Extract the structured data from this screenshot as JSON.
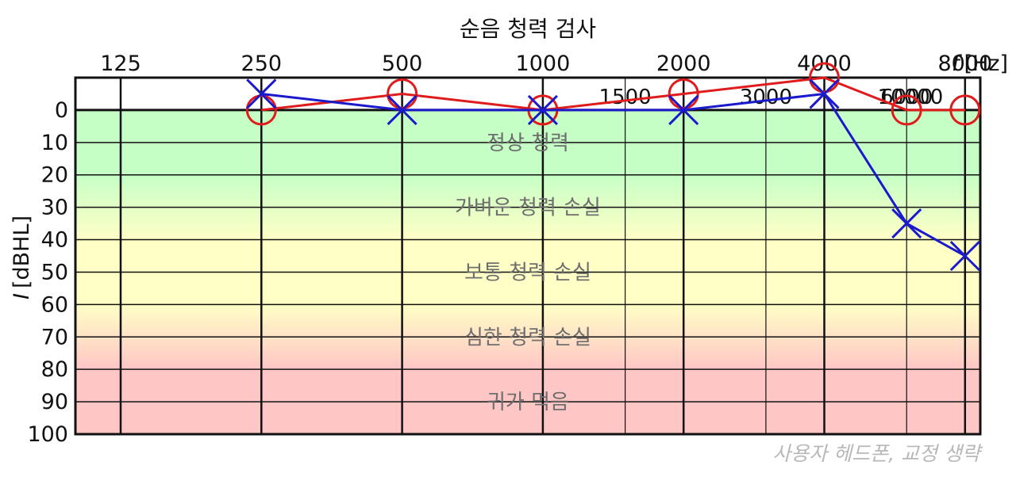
{
  "chart_data": {
    "type": "line",
    "title": "순음 청력 검사",
    "xlabel_symbol": "f",
    "xlabel_unit": "[Hz]",
    "ylabel_symbol": "I",
    "ylabel_unit": "[dBHL]",
    "x_scale": "log2",
    "xlim": [
      125,
      10000
    ],
    "ylim": [
      100,
      -10
    ],
    "y_inverted": true,
    "grid": true,
    "x_major_ticks": [
      125,
      250,
      500,
      1000,
      2000,
      4000,
      8000
    ],
    "x_major_labels": [
      "125",
      "250",
      "500",
      "1000",
      "2000",
      "4000",
      "8000"
    ],
    "x_minor_ticks": [
      1500,
      3000,
      6000,
      10000
    ],
    "x_minor_labels": [
      "1500",
      "3000",
      "6000",
      "10000"
    ],
    "y_ticks": [
      0,
      10,
      20,
      30,
      40,
      50,
      60,
      70,
      80,
      90,
      100
    ],
    "y_labels": [
      "0",
      "10",
      "20",
      "30",
      "40",
      "50",
      "60",
      "70",
      "80",
      "90",
      "100"
    ],
    "bands": [
      {
        "label": "정상 청력",
        "from": 0,
        "to": 20,
        "color": "#c6ffc6"
      },
      {
        "label": "가벼운 청력 손실",
        "from": 20,
        "to": 40,
        "gradient": [
          "#c6ffc6",
          "#ffffc6"
        ]
      },
      {
        "label": "보통 청력 손실",
        "from": 40,
        "to": 60,
        "color": "#ffffc6"
      },
      {
        "label": "심한 청력 손실",
        "from": 60,
        "to": 80,
        "gradient": [
          "#ffffc6",
          "#ffc6c6"
        ]
      },
      {
        "label": "귀가 먹음",
        "from": 80,
        "to": 100,
        "color": "#ffc6c6"
      }
    ],
    "series": [
      {
        "marker": "circle",
        "color": "#e01b1b",
        "x": [
          250,
          500,
          1000,
          2000,
          4000,
          6000,
          8000
        ],
        "y": [
          0,
          -5,
          0,
          -5,
          -10,
          0,
          0
        ]
      },
      {
        "marker": "cross",
        "color": "#1a1acc",
        "x": [
          250,
          500,
          1000,
          2000,
          4000,
          6000,
          8000
        ],
        "y": [
          -5,
          0,
          0,
          0,
          -5,
          35,
          45
        ]
      }
    ],
    "note": "사용자 헤드폰, 교정 생략"
  }
}
